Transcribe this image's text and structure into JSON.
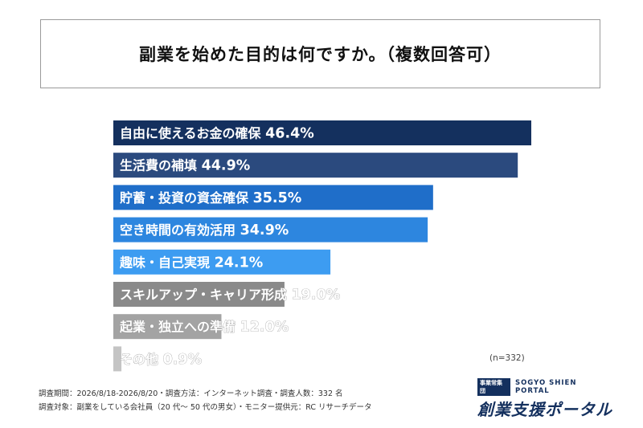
{
  "chart_data": {
    "type": "bar",
    "orientation": "horizontal",
    "title": "副業を始めた目的は何ですか。（複数回答可）",
    "categories": [
      "自由に使えるお金の確保",
      "生活費の補填",
      "貯蓄・投資の資金確保",
      "空き時間の有効活用",
      "趣味・自己実現",
      "スキルアップ・キャリア形成",
      "起業・独立への準備",
      "その他"
    ],
    "values": [
      46.4,
      44.9,
      35.5,
      34.9,
      24.1,
      19.0,
      12.0,
      0.9
    ],
    "value_labels": [
      "46.4%",
      "44.9%",
      "35.5%",
      "34.9%",
      "24.1%",
      "19.0%",
      "12.0%",
      "0.9%"
    ],
    "colors": [
      "#14305e",
      "#2b4a7e",
      "#1f6ec9",
      "#2d86df",
      "#3d9cf1",
      "#8a8a8a",
      "#a3a3a3",
      "#c4c4c4"
    ],
    "xlim": [
      0,
      46.4
    ],
    "legend": "none",
    "grid": false
  },
  "note": "(n=332)",
  "footer": {
    "line1": "調査期間：2026/8/18-2026/8/20・調査方法：インターネット調査・調査人数：332 名",
    "line2": "調査対象：副業をしている会社員（20 代〜 50 代の男女）・モニター提供元：RC リサーチデータ"
  },
  "brand": {
    "tag": "事業常集団",
    "english": "SOGYO SHIEN PORTAL",
    "japanese": "創業支援ポータル"
  }
}
